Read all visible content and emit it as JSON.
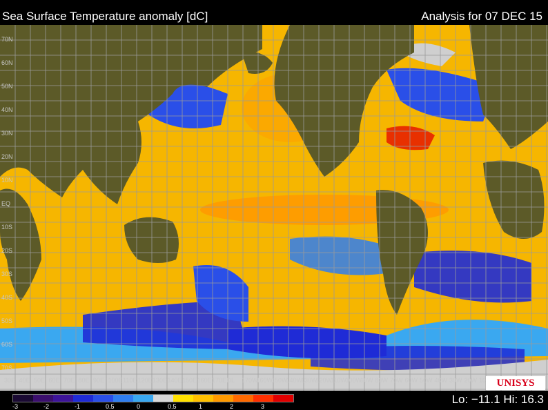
{
  "header": {
    "title": "Sea Surface Temperature anomaly [dC]",
    "analysis": "Analysis for 07 DEC 15"
  },
  "map": {
    "longitude_labels": [
      "30E",
      "40E",
      "50E",
      "60E",
      "70E",
      "80E",
      "90E",
      "100E",
      "110E",
      "120E",
      "130E",
      "140E",
      "150E",
      "160E",
      "170E",
      "DL",
      "170W",
      "160W",
      "150W",
      "140W",
      "130W",
      "120W",
      "110W",
      "100W",
      "90W",
      "80W",
      "70W",
      "60W",
      "50W",
      "40W",
      "30W",
      "20W",
      "10W"
    ],
    "latitude_labels": [
      "70N",
      "60N",
      "50N",
      "40N",
      "30N",
      "20N",
      "10N",
      "EQ",
      "10S",
      "20S",
      "30S",
      "40S",
      "50S",
      "60S",
      "70S"
    ],
    "colors": {
      "land": "#5c5a28",
      "ice": "#cfcfcf",
      "grid": "#9a9a9a"
    }
  },
  "legend": {
    "colors": [
      "#1a0a33",
      "#3b0f6e",
      "#3d1499",
      "#1f2bd6",
      "#2a4fe8",
      "#2f7ef0",
      "#3aa8f0",
      "#d8d8d8",
      "#ffe000",
      "#ffc000",
      "#ff9a00",
      "#ff6a00",
      "#ff3000",
      "#e00000"
    ],
    "ticks": [
      "-3",
      "-2",
      "-1",
      "0.5",
      "0",
      "0.5",
      "1",
      "2",
      "3"
    ]
  },
  "stats": "Lo: −11.1 Hi: 16.3",
  "logo": "UNISYS"
}
